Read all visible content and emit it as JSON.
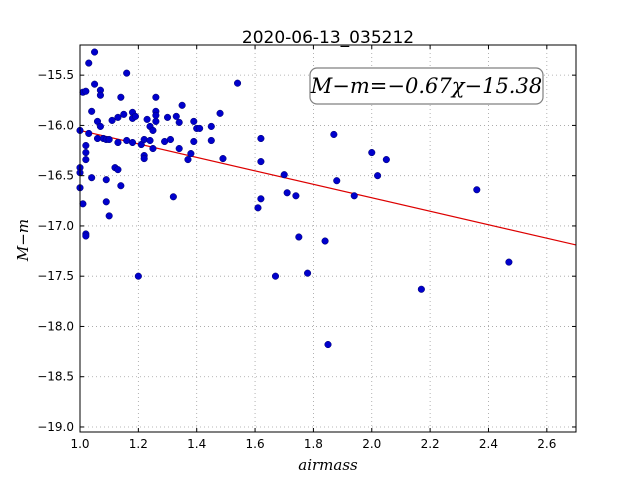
{
  "chart_data": {
    "type": "scatter",
    "title": "2020-06-13_035212",
    "xlabel": "airmass",
    "ylabel": "M−m",
    "xlim": [
      1.0,
      2.7
    ],
    "ylim": [
      -19.05,
      -15.2
    ],
    "y_inverted": true,
    "grid": true,
    "x_ticks": [
      1.0,
      1.2,
      1.4,
      1.6,
      1.8,
      2.0,
      2.2,
      2.4,
      2.6
    ],
    "x_tick_labels": [
      "1.0",
      "1.2",
      "1.4",
      "1.6",
      "1.8",
      "2.0",
      "2.2",
      "2.4",
      "2.6"
    ],
    "y_ticks": [
      -15.5,
      -16.0,
      -16.5,
      -17.0,
      -17.5,
      -18.0,
      -18.5,
      -19.0
    ],
    "y_tick_labels": [
      "−15.5",
      "−16.0",
      "−16.5",
      "−17.0",
      "−17.5",
      "−18.0",
      "−18.5",
      "−19.0"
    ],
    "annotation": "M−m=−0.67χ−15.38",
    "fit": {
      "slope": -0.67,
      "intercept": -15.38,
      "color": "#dd0000"
    },
    "marker_color": "#0000cc",
    "points": [
      [
        1.0,
        -16.05
      ],
      [
        1.0,
        -16.42
      ],
      [
        1.0,
        -16.47
      ],
      [
        1.0,
        -16.62
      ],
      [
        1.01,
        -15.67
      ],
      [
        1.01,
        -16.78
      ],
      [
        1.02,
        -15.66
      ],
      [
        1.02,
        -16.2
      ],
      [
        1.02,
        -16.27
      ],
      [
        1.02,
        -16.34
      ],
      [
        1.02,
        -17.08
      ],
      [
        1.02,
        -17.1
      ],
      [
        1.03,
        -16.08
      ],
      [
        1.03,
        -15.38
      ],
      [
        1.04,
        -16.52
      ],
      [
        1.04,
        -15.86
      ],
      [
        1.05,
        -15.27
      ],
      [
        1.05,
        -15.59
      ],
      [
        1.06,
        -15.96
      ],
      [
        1.06,
        -16.13
      ],
      [
        1.07,
        -15.65
      ],
      [
        1.07,
        -15.7
      ],
      [
        1.07,
        -16.01
      ],
      [
        1.08,
        -16.13
      ],
      [
        1.09,
        -16.14
      ],
      [
        1.09,
        -16.54
      ],
      [
        1.1,
        -16.14
      ],
      [
        1.09,
        -16.76
      ],
      [
        1.1,
        -16.9
      ],
      [
        1.11,
        -15.95
      ],
      [
        1.12,
        -16.42
      ],
      [
        1.13,
        -16.44
      ],
      [
        1.13,
        -15.92
      ],
      [
        1.13,
        -16.17
      ],
      [
        1.14,
        -15.72
      ],
      [
        1.14,
        -16.6
      ],
      [
        1.15,
        -15.89
      ],
      [
        1.16,
        -15.48
      ],
      [
        1.16,
        -16.15
      ],
      [
        1.18,
        -15.87
      ],
      [
        1.18,
        -15.93
      ],
      [
        1.18,
        -16.17
      ],
      [
        1.19,
        -15.91
      ],
      [
        1.2,
        -17.5
      ],
      [
        1.21,
        -16.19
      ],
      [
        1.22,
        -16.3
      ],
      [
        1.22,
        -16.33
      ],
      [
        1.22,
        -16.14
      ],
      [
        1.23,
        -15.94
      ],
      [
        1.24,
        -16.01
      ],
      [
        1.24,
        -16.15
      ],
      [
        1.25,
        -16.23
      ],
      [
        1.25,
        -16.05
      ],
      [
        1.26,
        -15.86
      ],
      [
        1.26,
        -15.9
      ],
      [
        1.26,
        -15.72
      ],
      [
        1.26,
        -15.96
      ],
      [
        1.29,
        -16.16
      ],
      [
        1.3,
        -15.92
      ],
      [
        1.31,
        -16.14
      ],
      [
        1.32,
        -16.71
      ],
      [
        1.33,
        -15.91
      ],
      [
        1.34,
        -16.23
      ],
      [
        1.34,
        -15.97
      ],
      [
        1.35,
        -15.8
      ],
      [
        1.37,
        -16.34
      ],
      [
        1.38,
        -16.28
      ],
      [
        1.39,
        -16.16
      ],
      [
        1.39,
        -15.96
      ],
      [
        1.4,
        -16.03
      ],
      [
        1.41,
        -16.03
      ],
      [
        1.45,
        -16.15
      ],
      [
        1.45,
        -16.01
      ],
      [
        1.48,
        -15.88
      ],
      [
        1.49,
        -16.33
      ],
      [
        1.54,
        -15.58
      ],
      [
        1.61,
        -16.82
      ],
      [
        1.62,
        -16.13
      ],
      [
        1.62,
        -16.36
      ],
      [
        1.62,
        -16.73
      ],
      [
        1.67,
        -17.5
      ],
      [
        1.7,
        -16.49
      ],
      [
        1.71,
        -16.67
      ],
      [
        1.74,
        -16.7
      ],
      [
        1.75,
        -17.11
      ],
      [
        1.78,
        -17.47
      ],
      [
        1.84,
        -17.15
      ],
      [
        1.85,
        -18.18
      ],
      [
        1.87,
        -16.09
      ],
      [
        1.88,
        -16.55
      ],
      [
        1.94,
        -16.7
      ],
      [
        2.0,
        -16.27
      ],
      [
        2.02,
        -16.5
      ],
      [
        2.05,
        -16.34
      ],
      [
        2.17,
        -17.63
      ],
      [
        2.36,
        -16.64
      ],
      [
        2.47,
        -17.36
      ]
    ]
  }
}
